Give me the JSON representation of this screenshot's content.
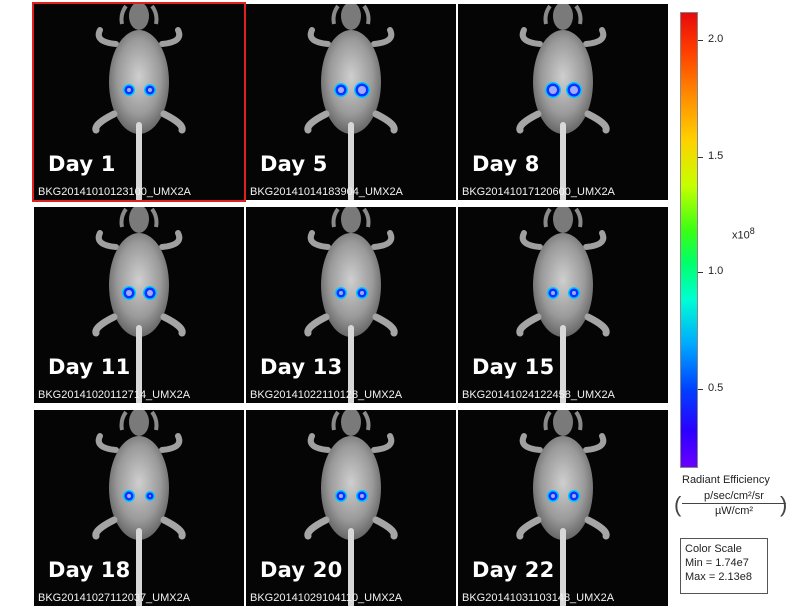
{
  "tiles": [
    {
      "day": "Day 1",
      "file": "BKG20141010123100_UMX2A",
      "selected": true
    },
    {
      "day": "Day 5",
      "file": "BKG20141014183904_UMX2A",
      "selected": false
    },
    {
      "day": "Day 8",
      "file": "BKG20141017120600_UMX2A",
      "selected": false
    },
    {
      "day": "Day 11",
      "file": "BKG20141020112714_UMX2A",
      "selected": false
    },
    {
      "day": "Day 13",
      "file": "BKG20141022110128_UMX2A",
      "selected": false
    },
    {
      "day": "Day 15",
      "file": "BKG20141024122458_UMX2A",
      "selected": false
    },
    {
      "day": "Day 18",
      "file": "BKG20141027112037_UMX2A",
      "selected": false
    },
    {
      "day": "Day 20",
      "file": "BKG20141029104110_UMX2A",
      "selected": false
    },
    {
      "day": "Day 22",
      "file": "BKG20141031103148_UMX2A",
      "selected": false
    }
  ],
  "scale": {
    "ticks": [
      "2.0",
      "1.5",
      "1.0",
      "0.5"
    ],
    "multiplier_base": "x10",
    "multiplier_exp": "8",
    "units_title": "Radiant Efficiency",
    "units_numerator": "p/sec/cm²/sr",
    "units_denominator": "µW/cm²",
    "color_scale_title": "Color Scale",
    "min": "Min = 1.74e7",
    "max": "Max = 2.13e8"
  },
  "colors": {
    "selection": "#e0211d",
    "tile_background": "#050505"
  }
}
